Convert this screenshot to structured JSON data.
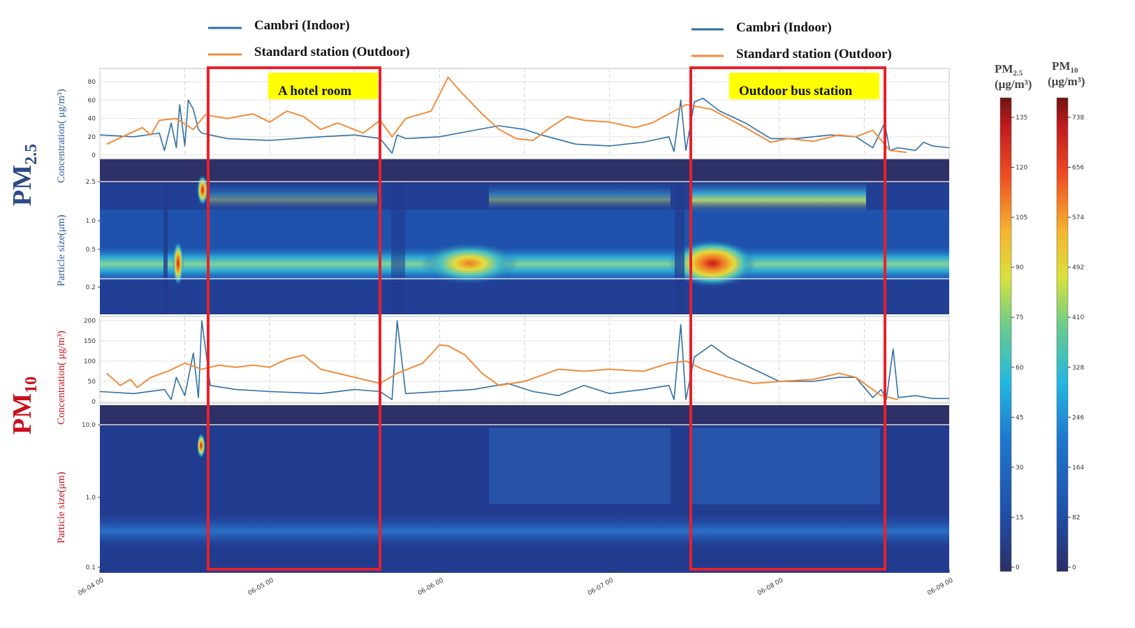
{
  "legend_left": {
    "series1": "Cambri (Indoor)",
    "series2": "Standard station (Outdoor)"
  },
  "legend_right": {
    "series1": "Cambri (Indoor)",
    "series2": "Standard station (Outdoor)"
  },
  "colors": {
    "indoor": "#2f6fa3",
    "outdoor": "#f08c3c",
    "highlight_box": "#e8202a",
    "annotation_bg": "#ffff00",
    "pm25_label": "#2c4a86",
    "pm10_label": "#c8101e"
  },
  "row_labels": {
    "pm25_main": "PM",
    "pm25_sub": "2.5",
    "pm10_main": "PM",
    "pm10_sub": "10"
  },
  "axis_labels": {
    "pm25_conc": "Concentration( μg/m³)",
    "pm25_size": "Particle size(μm)",
    "pm10_conc": "Concentration( μg/m³)",
    "pm10_size": "Particle size(μm)"
  },
  "annotations": {
    "hotel": "A hotel room",
    "bus": "Outdoor bus station"
  },
  "colorbars": {
    "pm25_title_main": "PM",
    "pm25_title_sub": "2.5",
    "pm25_unit": "(μg/m³)",
    "pm10_title_main": "PM",
    "pm10_title_sub": "10",
    "pm10_unit": "(μg/m³)",
    "pm25_ticks": [
      "135",
      "120",
      "105",
      "90",
      "75",
      "60",
      "45",
      "30",
      "15",
      "0"
    ],
    "pm10_ticks": [
      "738",
      "656",
      "574",
      "492",
      "410",
      "328",
      "246",
      "164",
      "82",
      "0"
    ]
  },
  "chart_data": [
    {
      "type": "line",
      "panel": "PM2.5 concentration",
      "ylabel": "Concentration( μg/m³)",
      "ylim": [
        0,
        90
      ],
      "yticks": [
        "0",
        "20",
        "40",
        "60",
        "80"
      ],
      "x_ticks": [
        "06-04 00",
        "06-05 00",
        "06-06 00",
        "06-07 00",
        "06-08 00",
        "06-09 00"
      ],
      "x_range_days": [
        0,
        5
      ],
      "grid": true,
      "series": [
        {
          "name": "Cambri (Indoor)",
          "x": [
            0,
            0.2,
            0.35,
            0.38,
            0.42,
            0.45,
            0.47,
            0.5,
            0.52,
            0.55,
            0.58,
            0.6,
            0.65,
            0.75,
            1.0,
            1.3,
            1.5,
            1.65,
            1.72,
            1.75,
            1.8,
            2.0,
            2.2,
            2.35,
            2.5,
            2.6,
            2.8,
            3.0,
            3.2,
            3.35,
            3.38,
            3.42,
            3.45,
            3.5,
            3.55,
            3.65,
            3.8,
            3.95,
            4.1,
            4.3,
            4.45,
            4.55,
            4.62,
            4.65,
            4.7,
            4.8,
            4.85,
            4.9,
            5.0
          ],
          "y": [
            22,
            20,
            24,
            5,
            35,
            8,
            55,
            10,
            60,
            50,
            28,
            24,
            22,
            18,
            16,
            20,
            22,
            18,
            2,
            22,
            18,
            20,
            27,
            32,
            28,
            22,
            12,
            10,
            14,
            20,
            4,
            60,
            5,
            58,
            62,
            48,
            35,
            18,
            18,
            22,
            20,
            8,
            35,
            5,
            8,
            5,
            14,
            10,
            8
          ]
        },
        {
          "name": "Standard station (Outdoor)",
          "x": [
            0.04,
            0.25,
            0.3,
            0.35,
            0.45,
            0.55,
            0.62,
            0.75,
            0.9,
            1.0,
            1.1,
            1.2,
            1.3,
            1.4,
            1.55,
            1.65,
            1.72,
            1.8,
            1.95,
            2.05,
            2.12,
            2.25,
            2.35,
            2.45,
            2.55,
            2.65,
            2.75,
            2.85,
            3.0,
            3.15,
            3.25,
            3.35,
            3.45,
            3.6,
            3.8,
            3.95,
            4.05,
            4.2,
            4.35,
            4.45,
            4.55,
            4.65,
            4.75
          ],
          "y": [
            12,
            30,
            22,
            38,
            40,
            28,
            44,
            40,
            45,
            36,
            48,
            42,
            28,
            35,
            24,
            38,
            20,
            40,
            48,
            85,
            70,
            45,
            28,
            18,
            16,
            30,
            42,
            38,
            36,
            30,
            35,
            45,
            55,
            50,
            30,
            14,
            18,
            15,
            22,
            20,
            27,
            5,
            3
          ]
        }
      ]
    },
    {
      "type": "heatmap",
      "panel": "PM2.5 size distribution",
      "ylabel": "Particle size(μm)",
      "yticks": [
        "0.2",
        "0.5",
        "1.0",
        "2.5"
      ],
      "colorbar_range": [
        0,
        135
      ]
    },
    {
      "type": "line",
      "panel": "PM10 concentration",
      "ylabel": "Concentration( μg/m³)",
      "ylim": [
        0,
        200
      ],
      "yticks": [
        "0",
        "50",
        "100",
        "150",
        "200"
      ],
      "x_ticks": [
        "06-04 00",
        "06-05 00",
        "06-06 00",
        "06-07 00",
        "06-08 00",
        "06-09 00"
      ],
      "x_range_days": [
        0,
        5
      ],
      "grid": true,
      "series": [
        {
          "name": "Cambri (Indoor)",
          "x": [
            0,
            0.2,
            0.38,
            0.42,
            0.45,
            0.5,
            0.55,
            0.58,
            0.6,
            0.65,
            0.8,
            1.0,
            1.3,
            1.5,
            1.65,
            1.72,
            1.75,
            1.8,
            2.0,
            2.2,
            2.4,
            2.55,
            2.7,
            2.85,
            3.0,
            3.2,
            3.35,
            3.38,
            3.42,
            3.45,
            3.5,
            3.6,
            3.7,
            3.85,
            4.0,
            4.2,
            4.35,
            4.45,
            4.55,
            4.6,
            4.63,
            4.67,
            4.7,
            4.8,
            4.9,
            5.0
          ],
          "y": [
            25,
            20,
            30,
            5,
            60,
            15,
            120,
            10,
            200,
            40,
            30,
            25,
            20,
            30,
            25,
            5,
            200,
            20,
            25,
            30,
            45,
            25,
            15,
            40,
            20,
            30,
            40,
            5,
            190,
            5,
            110,
            140,
            110,
            80,
            50,
            50,
            60,
            60,
            10,
            30,
            5,
            130,
            10,
            15,
            8,
            8
          ]
        },
        {
          "name": "Standard station (Outdoor)",
          "x": [
            0.04,
            0.12,
            0.18,
            0.22,
            0.3,
            0.4,
            0.5,
            0.6,
            0.7,
            0.8,
            0.9,
            1.0,
            1.1,
            1.2,
            1.3,
            1.4,
            1.55,
            1.65,
            1.75,
            1.9,
            2.0,
            2.05,
            2.15,
            2.25,
            2.35,
            2.5,
            2.7,
            2.85,
            3.0,
            3.2,
            3.35,
            3.45,
            3.55,
            3.7,
            3.85,
            4.0,
            4.2,
            4.35,
            4.45,
            4.6,
            4.7
          ],
          "y": [
            70,
            40,
            55,
            35,
            60,
            75,
            95,
            80,
            90,
            85,
            90,
            85,
            105,
            115,
            80,
            70,
            55,
            45,
            70,
            95,
            140,
            138,
            115,
            70,
            40,
            50,
            80,
            75,
            80,
            75,
            95,
            100,
            80,
            60,
            45,
            50,
            55,
            70,
            60,
            15,
            5
          ]
        }
      ]
    },
    {
      "type": "heatmap",
      "panel": "PM10 size distribution",
      "ylabel": "Particle size(μm)",
      "yticks": [
        "0.1",
        "1.0",
        "10.0"
      ],
      "colorbar_range": [
        0,
        738
      ]
    }
  ]
}
